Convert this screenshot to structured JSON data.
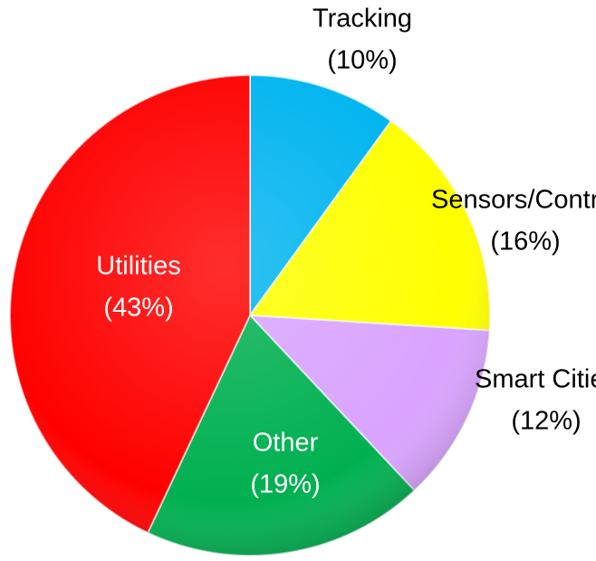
{
  "chart_data": {
    "type": "pie",
    "categories": [
      "Tracking",
      "Sensors/Control",
      "Smart Cities",
      "Other",
      "Utilities"
    ],
    "values": [
      10,
      16,
      12,
      19,
      43
    ],
    "value_labels": [
      "(10%)",
      "(16%)",
      "(12%)",
      "(19%)",
      "(43%)"
    ],
    "colors": [
      "#00b4f0",
      "#ffff00",
      "#d9a3ff",
      "#00b050",
      "#ff0000"
    ]
  }
}
